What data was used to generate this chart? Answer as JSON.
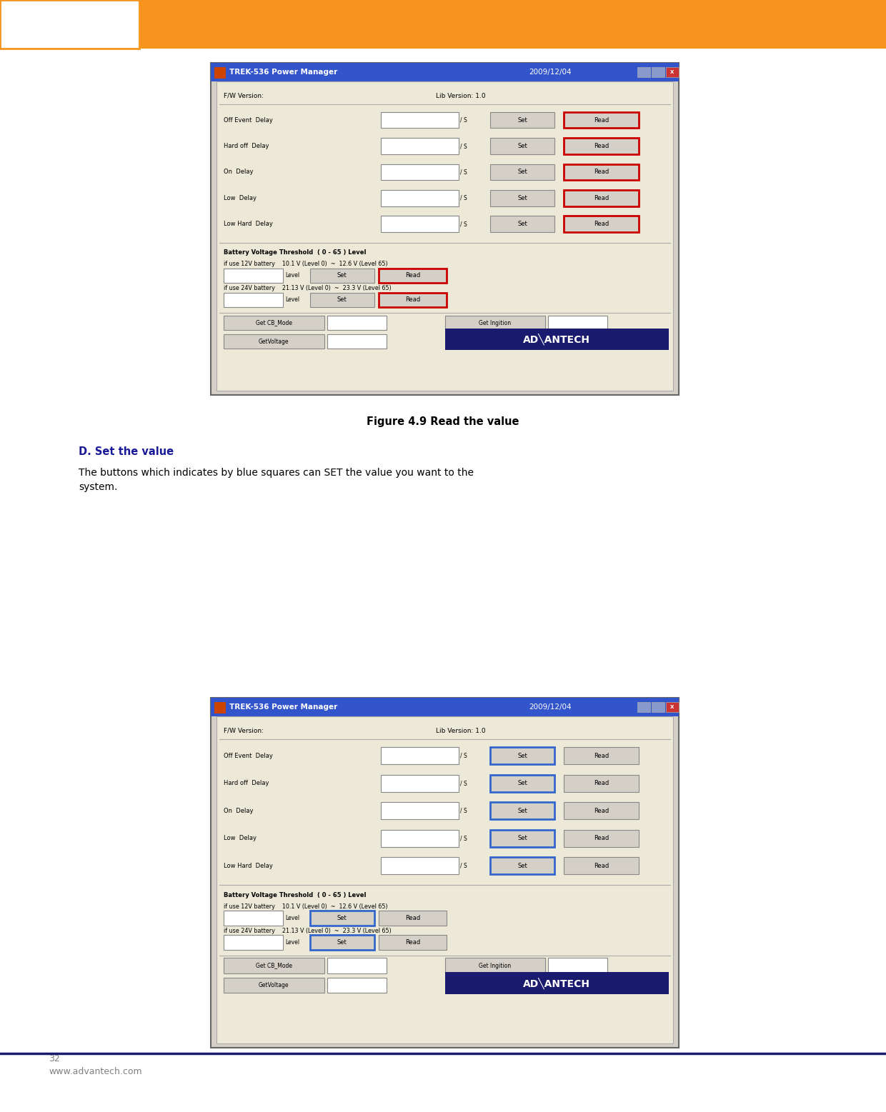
{
  "page_bg": "#ffffff",
  "header_bar_color": "#F7941D",
  "footer_text_line1": "32",
  "footer_text_line2": "www.advantech.com",
  "footer_fontsize": 9,
  "footer_color": "#808080",
  "figure_caption": "Figure 4.9 Read the value",
  "caption_fontsize": 10.5,
  "section_title": "D. Set the value",
  "section_title_fontsize": 10.5,
  "section_body": "The buttons which indicates by blue squares can SET the value you want to the\nsystem.",
  "section_body_fontsize": 10,
  "window_title": "TREK-536 Power Manager",
  "window_date": "2009/12/04",
  "fw_version_label": "F/W Version:",
  "lib_version_label": "Lib Version: 1.0",
  "delay_rows": [
    "Off Event  Delay",
    "Hard off  Delay",
    "On  Delay",
    "Low  Delay",
    "Low Hard  Delay"
  ],
  "battery_label1": "Battery Voltage Threshold  ( 0 - 65 ) Level",
  "battery_12v": "if use 12V battery    10.1 V (Level 0)  ~  12.6 V (Level 65)",
  "battery_24v": "if use 24V battery    21.13 V (Level 0)  ~  23.3 V (Level 65)",
  "red_highlight_color": "#cc0000",
  "blue_highlight_color": "#3366cc",
  "window_bg": "#d4d0c8",
  "window_inner_bg": "#ece9d8",
  "window_title_bar": "#3355cc",
  "button_bg": "#d4d0c8",
  "input_bg": "#ffffff",
  "advantech_navy": "#1a1a6e",
  "advantech_logo_text": "AD╲ANTECH"
}
